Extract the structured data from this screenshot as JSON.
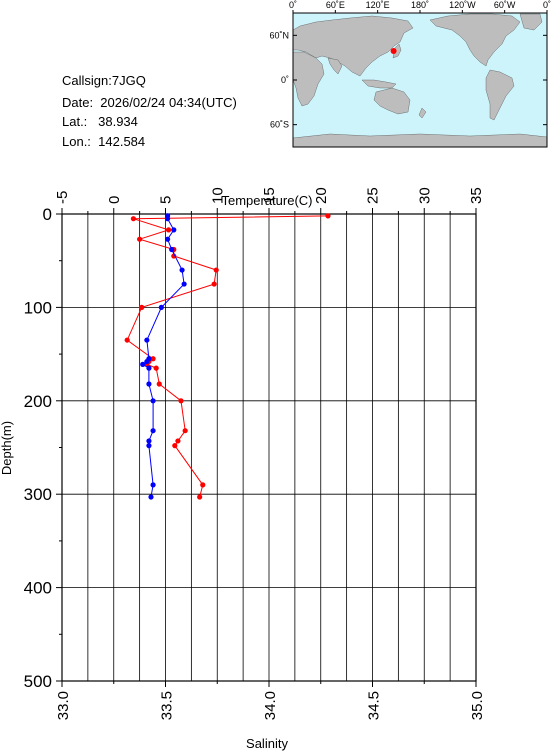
{
  "station": {
    "callsign": "Callsign:7JGQ",
    "date": "Date:  2026/02/24 04:34(UTC)",
    "lat": "Lat.:   38.934",
    "lon": "Lon.:  142.584"
  },
  "map": {
    "top_ticks": [
      "0˚",
      "60˚E",
      "120˚E",
      "180˚",
      "120˚W",
      "60˚W",
      "0˚"
    ],
    "left_ticks": [
      "60˚N",
      "0˚",
      "60˚S"
    ],
    "ocean_color": "#cdf4fb",
    "land_color": "#bdbdbd",
    "marker_color": "#ff0000",
    "marker": {
      "lon": 142.584,
      "lat": 38.934
    }
  },
  "chart_data": {
    "type": "line",
    "ylabel": "Depth(m)",
    "ylim": [
      0,
      500
    ],
    "yticks": [
      "0",
      "100",
      "200",
      "300",
      "400",
      "500"
    ],
    "y_inverted": true,
    "temperature_axis": {
      "label": "Temperature(C)",
      "position": "top",
      "range": [
        -5,
        35
      ],
      "ticks": [
        "-5",
        "0",
        "5",
        "10",
        "15",
        "20",
        "25",
        "30",
        "35"
      ]
    },
    "salinity_axis": {
      "label": "Salinity",
      "position": "bottom",
      "range": [
        33.0,
        35.0
      ],
      "ticks": [
        "33.0",
        "33.5",
        "34.0",
        "34.5",
        "35.0"
      ]
    },
    "grid": true,
    "series": [
      {
        "axis": "temperature",
        "color": "#ff0000",
        "points": [
          {
            "depth": 2,
            "value": 20.7
          },
          {
            "depth": 5,
            "value": 1.9
          },
          {
            "depth": 17,
            "value": 5.3
          },
          {
            "depth": 27,
            "value": 2.5
          },
          {
            "depth": 38,
            "value": 5.8
          },
          {
            "depth": 45,
            "value": 5.8
          },
          {
            "depth": 60,
            "value": 9.9
          },
          {
            "depth": 75,
            "value": 9.7
          },
          {
            "depth": 100,
            "value": 2.7
          },
          {
            "depth": 135,
            "value": 1.3
          },
          {
            "depth": 155,
            "value": 3.8
          },
          {
            "depth": 158,
            "value": 3.4
          },
          {
            "depth": 161,
            "value": 3.2
          },
          {
            "depth": 165,
            "value": 4.1
          },
          {
            "depth": 182,
            "value": 4.4
          },
          {
            "depth": 200,
            "value": 6.5
          },
          {
            "depth": 232,
            "value": 6.9
          },
          {
            "depth": 243,
            "value": 6.2
          },
          {
            "depth": 248,
            "value": 5.9
          },
          {
            "depth": 290,
            "value": 8.6
          },
          {
            "depth": 303,
            "value": 8.3
          }
        ]
      },
      {
        "axis": "salinity",
        "color": "#0000ff",
        "points": [
          {
            "depth": 2,
            "value": 33.51
          },
          {
            "depth": 5,
            "value": 33.51
          },
          {
            "depth": 17,
            "value": 33.54
          },
          {
            "depth": 27,
            "value": 33.51
          },
          {
            "depth": 38,
            "value": 33.53
          },
          {
            "depth": 60,
            "value": 33.58
          },
          {
            "depth": 75,
            "value": 33.59
          },
          {
            "depth": 100,
            "value": 33.48
          },
          {
            "depth": 135,
            "value": 33.41
          },
          {
            "depth": 155,
            "value": 33.42
          },
          {
            "depth": 158,
            "value": 33.41
          },
          {
            "depth": 161,
            "value": 33.39
          },
          {
            "depth": 165,
            "value": 33.42
          },
          {
            "depth": 182,
            "value": 33.42
          },
          {
            "depth": 200,
            "value": 33.44
          },
          {
            "depth": 232,
            "value": 33.44
          },
          {
            "depth": 243,
            "value": 33.42
          },
          {
            "depth": 248,
            "value": 33.42
          },
          {
            "depth": 290,
            "value": 33.44
          },
          {
            "depth": 303,
            "value": 33.43
          }
        ]
      }
    ]
  }
}
